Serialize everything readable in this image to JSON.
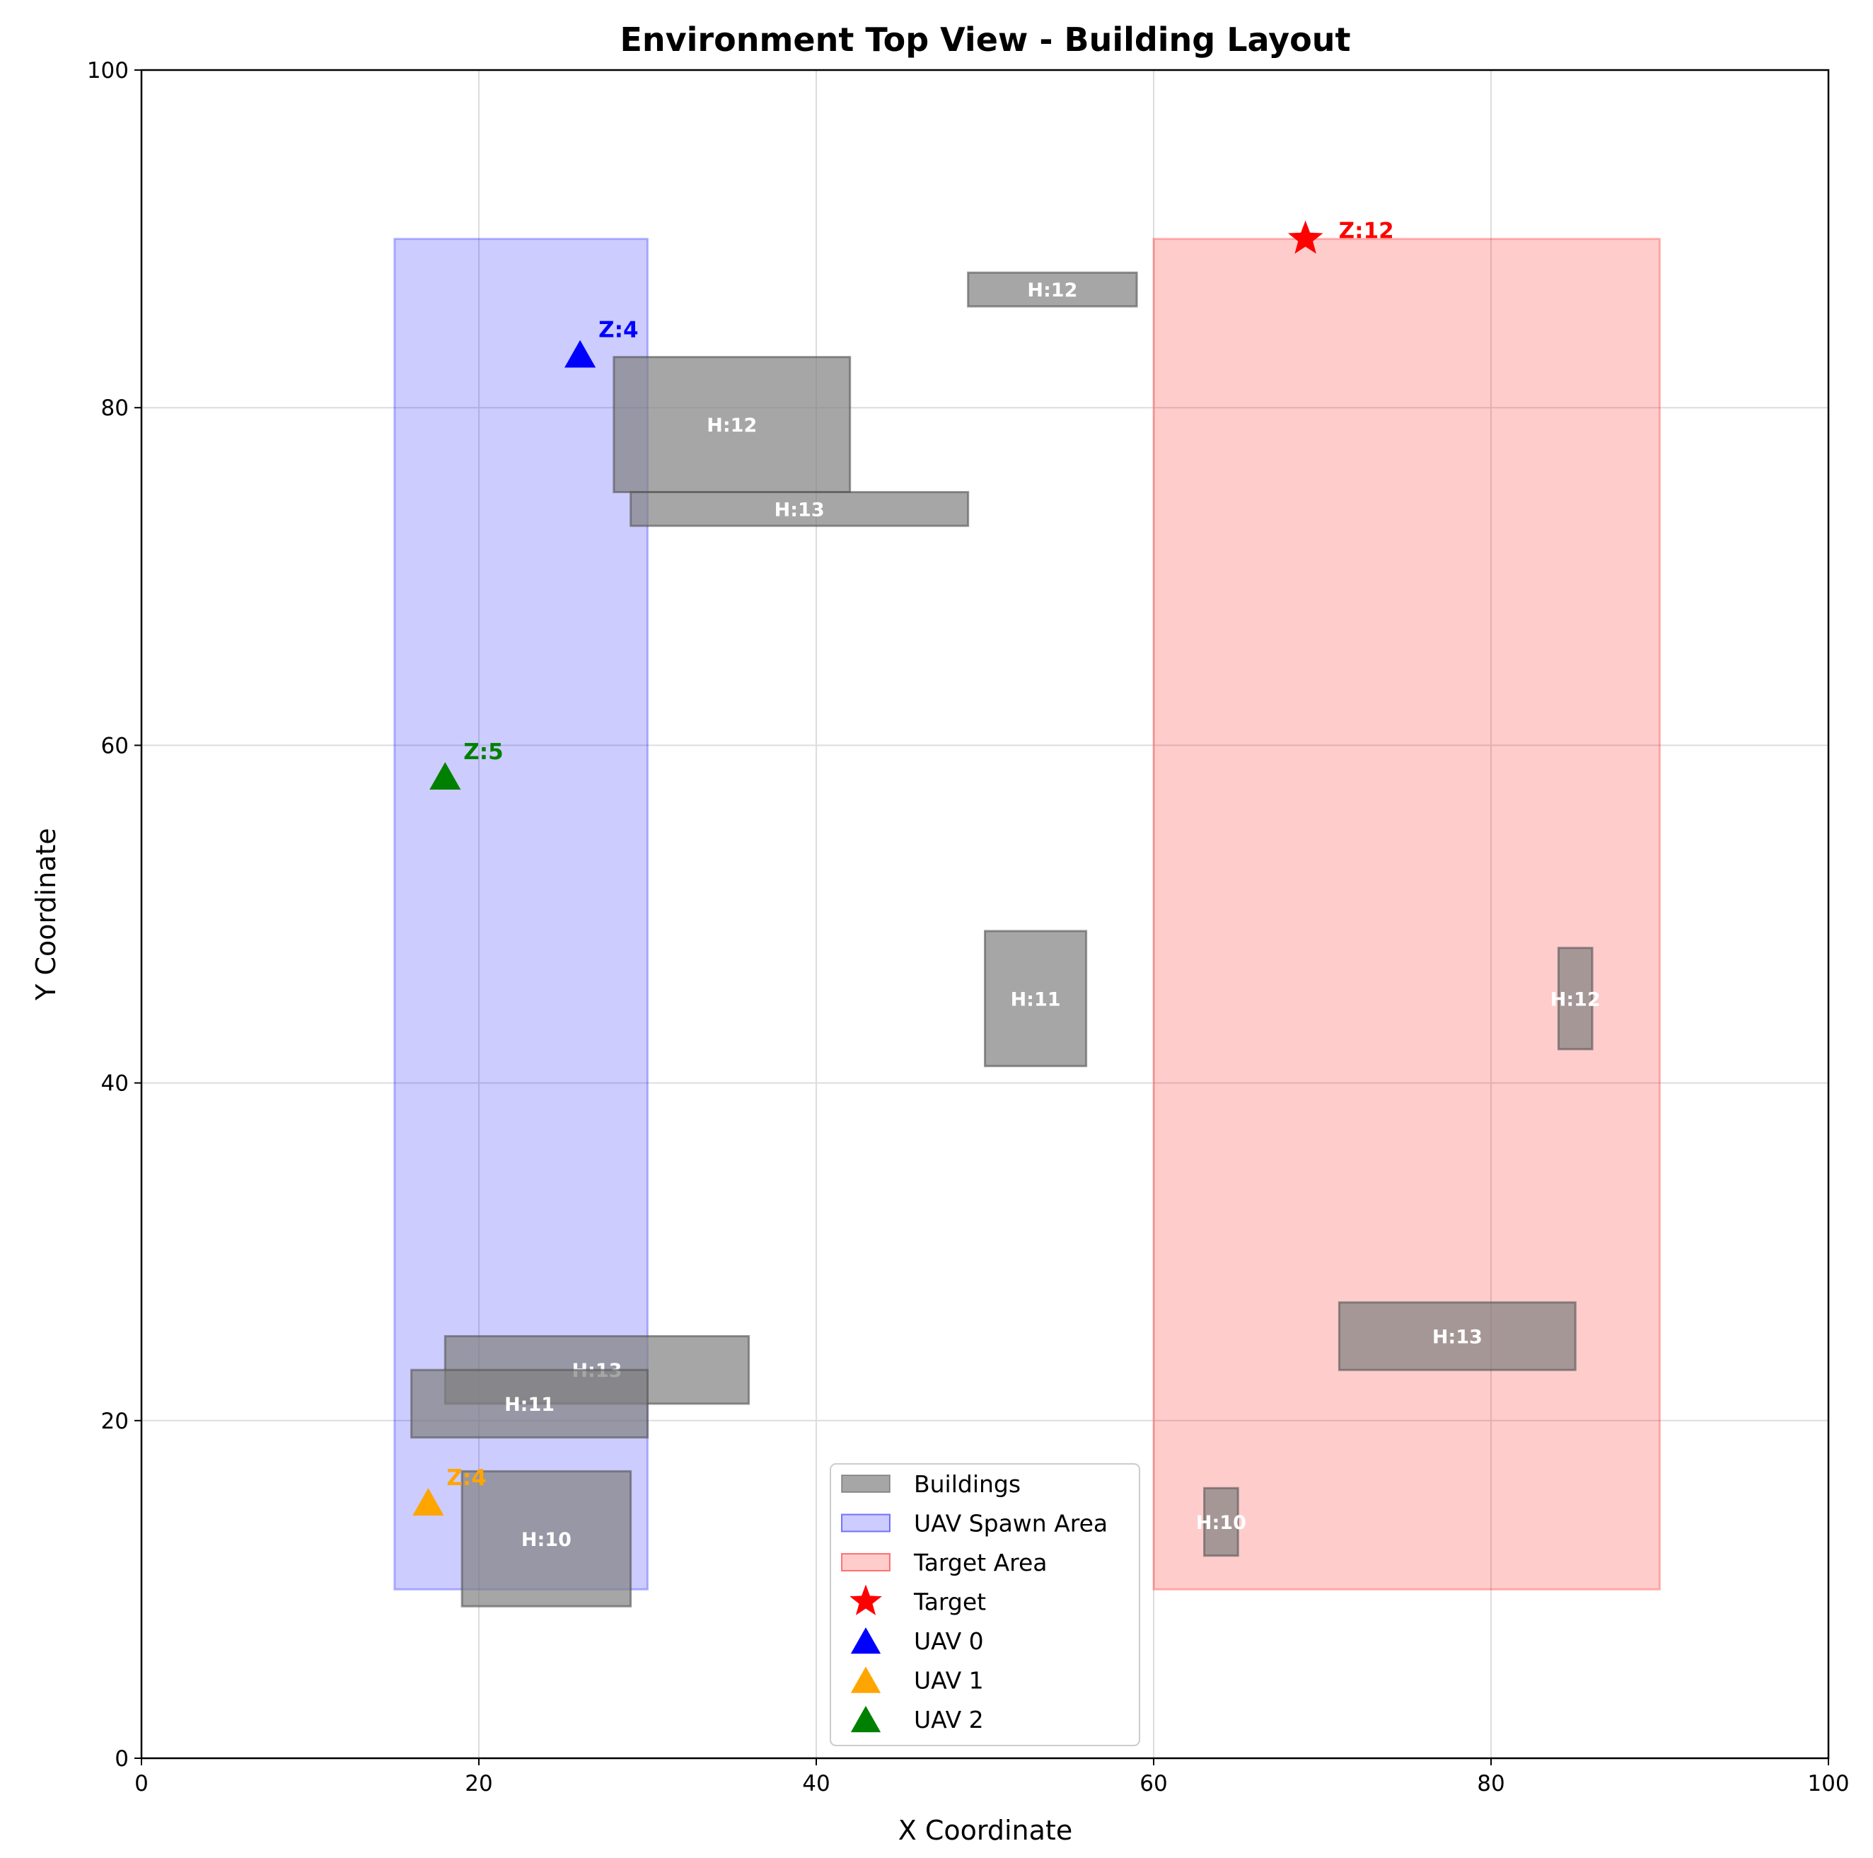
{
  "chart_data": {
    "type": "scatter",
    "title": "Environment Top View - Building Layout",
    "xlabel": "X Coordinate",
    "ylabel": "Y Coordinate",
    "xlim": [
      0,
      100
    ],
    "ylim": [
      0,
      100
    ],
    "xticks": [
      "0",
      "20",
      "40",
      "60",
      "80",
      "100"
    ],
    "yticks": [
      "0",
      "20",
      "40",
      "60",
      "80",
      "100"
    ],
    "grid": true,
    "legend_position": "bottom-center",
    "colors": {
      "building": "#808080",
      "spawn": "#0000ff",
      "target_area": "#ff0000",
      "target": "#ff0000",
      "uav0": "#0000ff",
      "uav1": "#ffa500",
      "uav2": "#008000"
    },
    "spawn_area": {
      "x0": 15,
      "y0": 10,
      "x1": 30,
      "y1": 90
    },
    "target_area": {
      "x0": 60,
      "y0": 10,
      "x1": 90,
      "y1": 90
    },
    "buildings": [
      {
        "x0": 49,
        "y0": 86,
        "x1": 59,
        "y1": 88,
        "label": "H:12"
      },
      {
        "x0": 28,
        "y0": 75,
        "x1": 42,
        "y1": 83,
        "label": "H:12"
      },
      {
        "x0": 29,
        "y0": 73,
        "x1": 49,
        "y1": 75,
        "label": "H:13"
      },
      {
        "x0": 50,
        "y0": 41,
        "x1": 56,
        "y1": 49,
        "label": "H:11"
      },
      {
        "x0": 84,
        "y0": 42,
        "x1": 86,
        "y1": 48,
        "label": "H:12"
      },
      {
        "x0": 71,
        "y0": 23,
        "x1": 85,
        "y1": 27,
        "label": "H:13"
      },
      {
        "x0": 18,
        "y0": 21,
        "x1": 36,
        "y1": 25,
        "label": "H:13"
      },
      {
        "x0": 16,
        "y0": 19,
        "x1": 30,
        "y1": 23,
        "label": "H:11"
      },
      {
        "x0": 19,
        "y0": 9,
        "x1": 29,
        "y1": 17,
        "label": "H:10"
      },
      {
        "x0": 63,
        "y0": 12,
        "x1": 65,
        "y1": 16,
        "label": "H:10"
      }
    ],
    "target": {
      "x": 69,
      "y": 90,
      "label": "Z:12"
    },
    "uavs": [
      {
        "name": "UAV 0",
        "x": 26,
        "y": 83,
        "label": "Z:4"
      },
      {
        "name": "UAV 1",
        "x": 17,
        "y": 15,
        "label": "Z:4"
      },
      {
        "name": "UAV 2",
        "x": 18,
        "y": 58,
        "label": "Z:5"
      }
    ],
    "legend": [
      "Buildings",
      "UAV Spawn Area",
      "Target Area",
      "Target",
      "UAV 0",
      "UAV 1",
      "UAV 2"
    ]
  }
}
